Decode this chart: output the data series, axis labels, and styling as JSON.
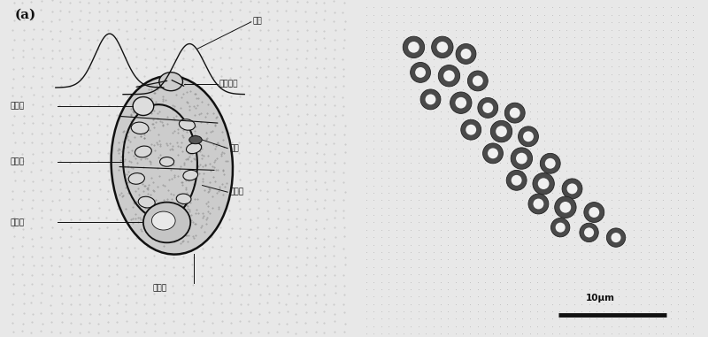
{
  "panel_label": "(a)",
  "labels": {
    "cilia": "绒毛",
    "cell_front": "细胞前端",
    "contractile_vacuole": "伸缩泡",
    "nucleus": "细胞核",
    "eyespot": "眼点",
    "pyrenoid": "蛋白核",
    "chloroplast": "色素体",
    "cell_wall": "细胞壁"
  },
  "scale_bar_text": "10μm",
  "bg_color": "#e8e8e8",
  "cell_fill": "#cccccc",
  "dot_color": "#aaaaaa",
  "line_color": "#111111"
}
